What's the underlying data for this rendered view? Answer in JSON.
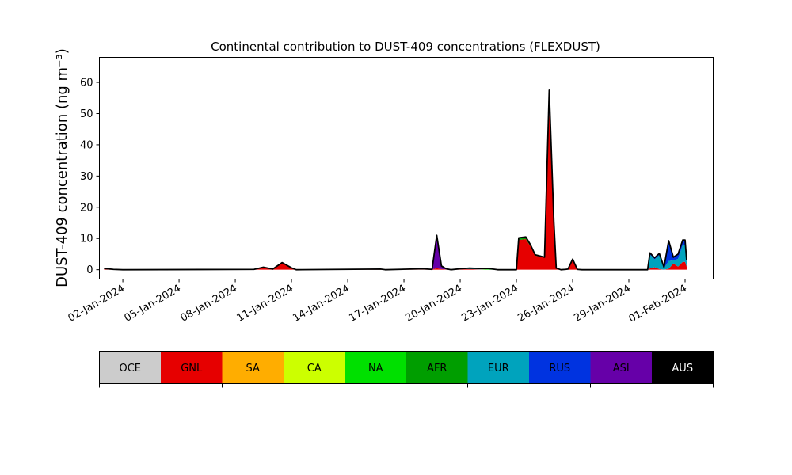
{
  "chart_data": {
    "type": "area",
    "title": "Continental contribution to DUST-409 concentrations (FLEXDUST)",
    "ylabel": "DUST-409 concentration (ng m⁻³)",
    "xlabel": "",
    "ylim": [
      -3,
      68
    ],
    "yticks": [
      0,
      10,
      20,
      30,
      40,
      50,
      60
    ],
    "xlim": [
      "2023-12-31T18:00",
      "2024-02-02T12:00"
    ],
    "xticks": [
      "2024-01-02",
      "2024-01-05",
      "2024-01-08",
      "2024-01-11",
      "2024-01-14",
      "2024-01-17",
      "2024-01-20",
      "2024-01-23",
      "2024-01-26",
      "2024-01-29",
      "2024-02-01"
    ],
    "xtick_labels": [
      "02-Jan-2024",
      "05-Jan-2024",
      "08-Jan-2024",
      "11-Jan-2024",
      "14-Jan-2024",
      "17-Jan-2024",
      "20-Jan-2024",
      "23-Jan-2024",
      "26-Jan-2024",
      "29-Jan-2024",
      "01-Feb-2024"
    ],
    "x": [
      "2024-01-01T00:00",
      "2024-01-01T12:00",
      "2024-01-02T00:00",
      "2024-01-09T00:00",
      "2024-01-09T12:00",
      "2024-01-10T00:00",
      "2024-01-10T12:00",
      "2024-01-11T00:00",
      "2024-01-11T06:00",
      "2024-01-15T18:00",
      "2024-01-16T00:00",
      "2024-01-18T00:00",
      "2024-01-18T12:00",
      "2024-01-18T18:00",
      "2024-01-19T00:00",
      "2024-01-19T06:00",
      "2024-01-19T12:00",
      "2024-01-20T00:00",
      "2024-01-20T12:00",
      "2024-01-21T00:00",
      "2024-01-21T12:00",
      "2024-01-22T00:00",
      "2024-01-23T00:00",
      "2024-01-23T03:00",
      "2024-01-23T12:00",
      "2024-01-23T18:00",
      "2024-01-24T00:00",
      "2024-01-24T12:00",
      "2024-01-24T18:00",
      "2024-01-25T00:00",
      "2024-01-25T03:00",
      "2024-01-25T09:00",
      "2024-01-25T15:00",
      "2024-01-25T18:00",
      "2024-01-26T00:00",
      "2024-01-26T06:00",
      "2024-01-26T12:00",
      "2024-01-27T00:00",
      "2024-01-28T00:00",
      "2024-01-30T00:00",
      "2024-01-30T03:00",
      "2024-01-30T09:00",
      "2024-01-30T15:00",
      "2024-01-30T21:00",
      "2024-01-31T03:00",
      "2024-01-31T09:00",
      "2024-01-31T15:00",
      "2024-01-31T21:00",
      "2024-02-01T00:00",
      "2024-02-01T02:00"
    ],
    "series": [
      {
        "name": "OCE",
        "color": "#cccccc",
        "values": [
          0,
          0,
          0,
          0,
          0,
          0,
          0,
          0,
          0,
          0,
          0,
          0,
          0,
          0,
          0,
          0,
          0,
          0,
          0,
          0,
          0,
          0,
          0,
          0,
          0,
          0,
          0,
          0,
          0,
          0,
          0,
          0,
          0,
          0,
          0,
          0,
          0,
          0,
          0,
          0,
          0,
          0,
          0,
          0,
          0,
          0,
          0,
          0,
          0,
          0
        ]
      },
      {
        "name": "GNL",
        "color": "#e60000",
        "values": [
          0.4,
          0.1,
          0,
          0.1,
          0.8,
          0.2,
          2.3,
          0.6,
          0,
          0.2,
          0,
          0.3,
          0.1,
          0.5,
          0.2,
          0.1,
          0,
          0.2,
          0.2,
          0.1,
          0,
          0,
          0,
          9.5,
          9.8,
          7.5,
          4.5,
          4.0,
          52.0,
          12.0,
          0.5,
          0,
          0.1,
          0.2,
          3.2,
          0.1,
          0,
          0,
          0,
          0,
          0.4,
          0.8,
          0.2,
          0,
          0.3,
          2.0,
          1.0,
          2.5,
          2.5,
          1.0
        ]
      },
      {
        "name": "SA",
        "color": "#ffad00",
        "values": [
          0,
          0,
          0,
          0,
          0,
          0,
          0,
          0,
          0,
          0,
          0,
          0,
          0,
          0,
          0,
          0,
          0,
          0,
          0,
          0,
          0,
          0,
          0,
          0,
          0,
          0,
          0,
          0,
          0,
          0,
          0,
          0,
          0,
          0,
          0,
          0,
          0,
          0,
          0,
          0,
          0,
          0,
          0,
          0,
          0,
          0,
          0,
          0,
          0,
          0
        ]
      },
      {
        "name": "CA",
        "color": "#ccff00",
        "values": [
          0,
          0,
          0,
          0,
          0,
          0,
          0,
          0,
          0,
          0,
          0,
          0,
          0,
          0,
          0,
          0,
          0,
          0,
          0,
          0,
          0,
          0,
          0,
          0,
          0,
          0,
          0,
          0,
          0,
          0,
          0,
          0,
          0,
          0,
          0,
          0,
          0,
          0,
          0,
          0,
          0,
          0,
          0,
          0,
          0,
          0,
          0,
          0,
          0,
          0
        ]
      },
      {
        "name": "NA",
        "color": "#00e000",
        "values": [
          0,
          0,
          0,
          0,
          0,
          0,
          0,
          0,
          0,
          0,
          0,
          0,
          0,
          0,
          0,
          0,
          0,
          0,
          0,
          0,
          0.2,
          0,
          0,
          0,
          0,
          0,
          0,
          0,
          0,
          0,
          0,
          0,
          0,
          0,
          0,
          0,
          0,
          0,
          0,
          0,
          0,
          0,
          0,
          0,
          0,
          0,
          0,
          0,
          0,
          0
        ]
      },
      {
        "name": "AFR",
        "color": "#009e00",
        "values": [
          0,
          0,
          0,
          0,
          0,
          0,
          0,
          0,
          0,
          0,
          0,
          0,
          0,
          0,
          0,
          0,
          0,
          0,
          0,
          0,
          0,
          0,
          0,
          0.7,
          0.7,
          0.5,
          0.3,
          0,
          0.5,
          0.3,
          0,
          0,
          0,
          0,
          0.2,
          0,
          0,
          0,
          0,
          0,
          0,
          0,
          0,
          0,
          0,
          0,
          0,
          0,
          0,
          0
        ]
      },
      {
        "name": "EUR",
        "color": "#00a3bd",
        "values": [
          0,
          0,
          0,
          0,
          0,
          0,
          0,
          0,
          0,
          0,
          0,
          0,
          0,
          0,
          0,
          0,
          0,
          0.1,
          0.3,
          0.3,
          0.2,
          0,
          0,
          0,
          0,
          0,
          0,
          0,
          0,
          0,
          0,
          0,
          0,
          0,
          0,
          0,
          0,
          0,
          0,
          0,
          4.5,
          2.5,
          4.5,
          0.5,
          2.5,
          1.0,
          2.5,
          5.5,
          5.5,
          1.5
        ]
      },
      {
        "name": "RUS",
        "color": "#0033e0",
        "values": [
          0,
          0,
          0,
          0,
          0,
          0,
          0,
          0,
          0,
          0,
          0,
          0,
          0,
          0,
          0,
          0,
          0,
          0,
          0,
          0,
          0,
          0,
          0,
          0,
          0,
          0,
          0,
          0,
          5.0,
          3.0,
          0,
          0,
          0,
          0,
          0,
          0,
          0,
          0,
          0,
          0,
          0.5,
          0.5,
          0.5,
          0.3,
          6.5,
          1.0,
          1.5,
          1.5,
          1.5,
          0.5
        ]
      },
      {
        "name": "ASI",
        "color": "#6600a8",
        "values": [
          0,
          0,
          0,
          0,
          0,
          0,
          0,
          0,
          0,
          0,
          0,
          0,
          0,
          10.5,
          1.0,
          0.2,
          0,
          0,
          0,
          0,
          0,
          0,
          0,
          0,
          0,
          0,
          0,
          0,
          0,
          0,
          0,
          0,
          0,
          0,
          0,
          0,
          0,
          0,
          0,
          0,
          0,
          0,
          0,
          0,
          0,
          0,
          0,
          0,
          0,
          0
        ]
      },
      {
        "name": "AUS",
        "color": "#000000",
        "values": [
          0,
          0,
          0,
          0,
          0,
          0,
          0,
          0,
          0,
          0,
          0,
          0,
          0,
          0,
          0,
          0,
          0,
          0,
          0,
          0,
          0,
          0,
          0,
          0,
          0,
          0,
          0,
          0,
          0,
          0,
          0,
          0,
          0,
          0,
          0,
          0,
          0,
          0,
          0,
          0,
          0,
          0,
          0,
          0,
          0,
          0,
          0,
          0,
          0,
          0
        ]
      }
    ],
    "grid": false,
    "legend": {
      "placement": "bottom",
      "entries": [
        "OCE",
        "GNL",
        "SA",
        "CA",
        "NA",
        "AFR",
        "EUR",
        "RUS",
        "ASI",
        "AUS"
      ],
      "text_colors": [
        "#000000",
        "#000000",
        "#000000",
        "#000000",
        "#000000",
        "#000000",
        "#000000",
        "#000000",
        "#000000",
        "#ffffff"
      ]
    }
  }
}
